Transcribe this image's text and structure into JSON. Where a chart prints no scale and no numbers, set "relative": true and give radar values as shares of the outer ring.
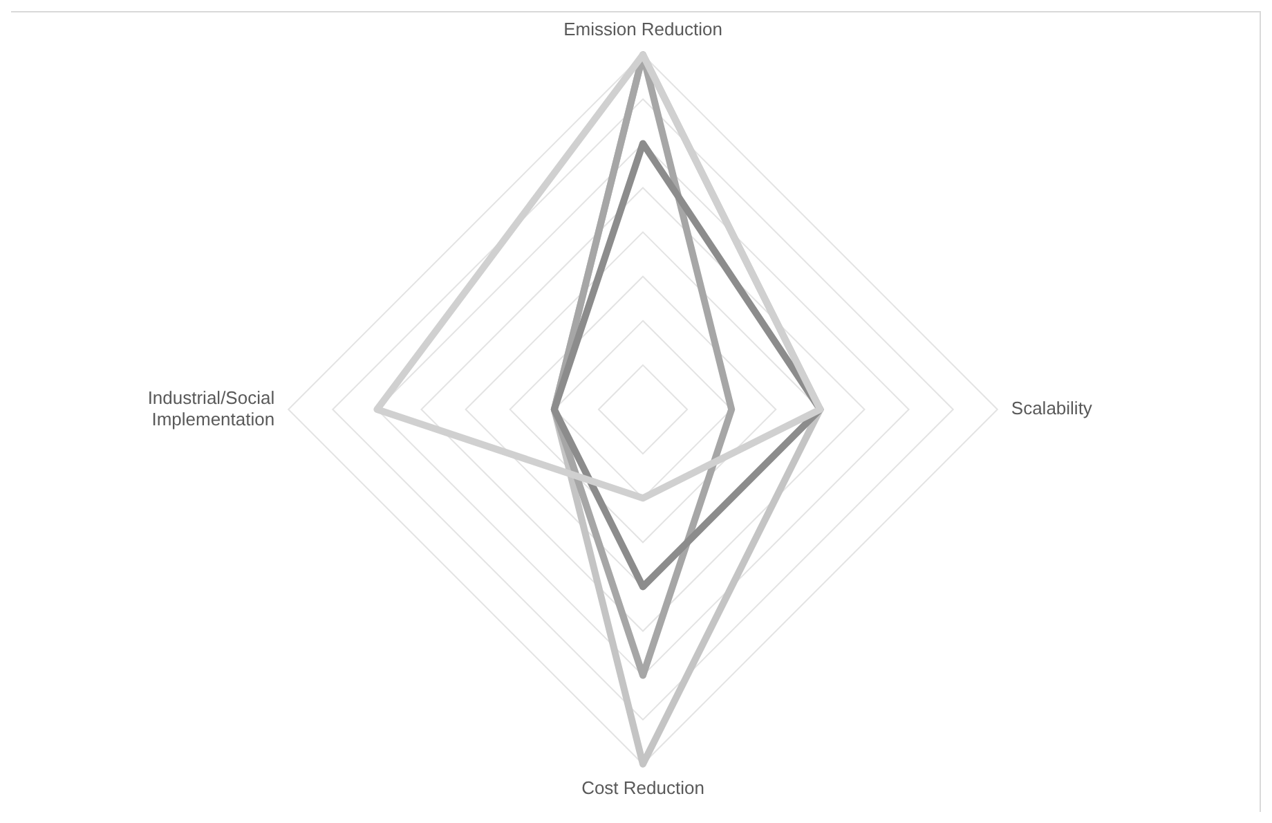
{
  "chart_data": {
    "type": "radar",
    "relative": true,
    "categories": [
      "Emission Reduction",
      "Scalability",
      "Cost Reduction",
      "Industrial/Social Implementation"
    ],
    "series": [
      {
        "color": "#d0d0d0",
        "values": [
          1,
          0.5,
          0.25,
          0.75
        ]
      },
      {
        "color": "#8c8c8c",
        "values": [
          0.75,
          0.5,
          0.5,
          0.25
        ]
      },
      {
        "color": "#a6a6a6",
        "values": [
          1,
          0.25,
          0.75,
          0.25
        ]
      },
      {
        "color": "#c4c4c4",
        "values": [
          1,
          0.5,
          1,
          0.25
        ]
      }
    ],
    "grid": true,
    "legend": false,
    "marker": "none"
  }
}
